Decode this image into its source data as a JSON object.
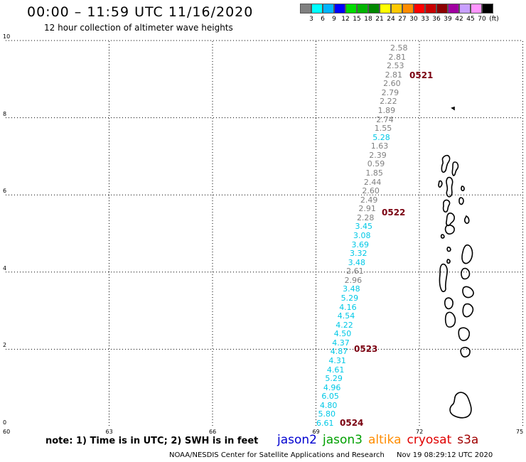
{
  "header": {
    "title": "00:00 – 11:59 UTC 11/16/2020",
    "subtitle": "12 hour collection of altimeter wave heights"
  },
  "legend": {
    "colors": [
      "#808080",
      "#00ffff",
      "#00b4ff",
      "#0000ff",
      "#00dc00",
      "#00b400",
      "#008800",
      "#ffff00",
      "#ffc800",
      "#ff8c00",
      "#ff0000",
      "#c80000",
      "#8c0000",
      "#a000a0",
      "#c8a0ff",
      "#ff96ff",
      "#000000"
    ],
    "labels": [
      "3",
      "6",
      "9",
      "12",
      "15",
      "18",
      "21",
      "24",
      "27",
      "30",
      "33",
      "36",
      "39",
      "42",
      "45",
      "70"
    ],
    "unit": "(ft)"
  },
  "map": {
    "lon_ticks": [
      "60",
      "63",
      "66",
      "69",
      "72",
      "75"
    ],
    "lat_ticks": [
      "0",
      "2",
      "4",
      "6",
      "8",
      "10"
    ],
    "observations": [
      {
        "value": "2.58",
        "color": "#808080"
      },
      {
        "value": "2.81",
        "color": "#808080"
      },
      {
        "value": "2.53",
        "color": "#808080"
      },
      {
        "value": "2.81",
        "color": "#808080"
      },
      {
        "value": "2.60",
        "color": "#808080"
      },
      {
        "value": "2.79",
        "color": "#808080"
      },
      {
        "value": "2.22",
        "color": "#808080"
      },
      {
        "value": "1.89",
        "color": "#808080"
      },
      {
        "value": "2.74",
        "color": "#808080"
      },
      {
        "value": "1.55",
        "color": "#808080"
      },
      {
        "value": "5.28",
        "color": "#00c8e6"
      },
      {
        "value": "1.63",
        "color": "#808080"
      },
      {
        "value": "2.39",
        "color": "#808080"
      },
      {
        "value": "0.59",
        "color": "#808080"
      },
      {
        "value": "1.85",
        "color": "#808080"
      },
      {
        "value": "2.44",
        "color": "#808080"
      },
      {
        "value": "2.60",
        "color": "#808080"
      },
      {
        "value": "2.49",
        "color": "#808080"
      },
      {
        "value": "2.91",
        "color": "#808080"
      },
      {
        "value": "2.28",
        "color": "#808080"
      },
      {
        "value": "3.45",
        "color": "#00c8e6"
      },
      {
        "value": "3.08",
        "color": "#00c8e6"
      },
      {
        "value": "3.69",
        "color": "#00c8e6"
      },
      {
        "value": "3.32",
        "color": "#00c8e6"
      },
      {
        "value": "3.48",
        "color": "#00c8e6"
      },
      {
        "value": "2.61",
        "color": "#808080"
      },
      {
        "value": "2.96",
        "color": "#808080"
      },
      {
        "value": "3.48",
        "color": "#00c8e6"
      },
      {
        "value": "5.29",
        "color": "#00c8e6"
      },
      {
        "value": "4.16",
        "color": "#00c8e6"
      },
      {
        "value": "4.54",
        "color": "#00c8e6"
      },
      {
        "value": "4.22",
        "color": "#00c8e6"
      },
      {
        "value": "4.50",
        "color": "#00c8e6"
      },
      {
        "value": "4.37",
        "color": "#00c8e6"
      },
      {
        "value": "4.87",
        "color": "#00c8e6"
      },
      {
        "value": "4.31",
        "color": "#00c8e6"
      },
      {
        "value": "4.61",
        "color": "#00c8e6"
      },
      {
        "value": "5.29",
        "color": "#00c8e6"
      },
      {
        "value": "4.96",
        "color": "#00c8e6"
      },
      {
        "value": "6.05",
        "color": "#00c8e6"
      },
      {
        "value": "4.80",
        "color": "#00c8e6"
      },
      {
        "value": "5.80",
        "color": "#00c8e6"
      },
      {
        "value": "6.61",
        "color": "#00c8e6"
      }
    ],
    "pass_times": [
      "0521",
      "0522",
      "0523",
      "0524"
    ]
  },
  "notes": {
    "note": "note:  1) Time is in UTC;  2) SWH is in feet"
  },
  "satellites": [
    {
      "name": "jason2",
      "color": "#0000d0"
    },
    {
      "name": "jason3",
      "color": "#00a000"
    },
    {
      "name": "altika",
      "color": "#ff8c00"
    },
    {
      "name": "cryosat",
      "color": "#e00000"
    },
    {
      "name": "s3a",
      "color": "#a00000"
    }
  ],
  "footer": {
    "credit": "NOAA/NESDIS Center for Satellite Applications and Research",
    "timestamp": "Nov 19 08:29:12 UTC 2020"
  }
}
